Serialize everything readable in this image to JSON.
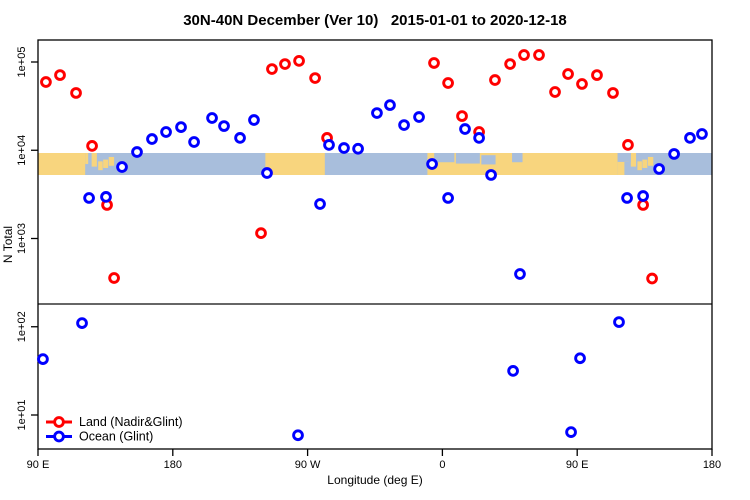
{
  "title": "30N-40N December (Ver 10)   2015-01-01 to 2020-12-18",
  "axes": {
    "x": {
      "label": "Longitude (deg E)",
      "ticks": [
        {
          "value": 90,
          "label": "90 E"
        },
        {
          "value": 180,
          "label": "180"
        },
        {
          "value": 270,
          "label": "90 W"
        },
        {
          "value": 360,
          "label": "0"
        },
        {
          "value": 450,
          "label": "90 E"
        },
        {
          "value": 540,
          "label": "180"
        }
      ]
    },
    "y": {
      "label": "N Total",
      "ticks": [
        {
          "value": 10,
          "label": "1e+01"
        },
        {
          "value": 100,
          "label": "1e+02"
        },
        {
          "value": 1000,
          "label": "1e+03"
        },
        {
          "value": 10000,
          "label": "1e+04"
        },
        {
          "value": 100000,
          "label": "1e+05"
        }
      ]
    }
  },
  "legend": [
    {
      "label": "Land (Nadir&Glint)",
      "color": "#ff0000"
    },
    {
      "label": "Ocean (Glint)",
      "color": "#0000ff"
    }
  ],
  "colors": {
    "land_series": "#ff0000",
    "ocean_series": "#0000ff",
    "map_land": "#f8d57e",
    "map_ocean": "#a8bedc",
    "frame": "#000000",
    "threshold_line": "#333333"
  },
  "map_band": {
    "description": "world map strip of the 30N-40N latitude band",
    "land_segments": [
      [
        90,
        121.5,
        0,
        1
      ],
      [
        121.5,
        123.5,
        0,
        0.5
      ],
      [
        125.8,
        129.3,
        0,
        0.62
      ],
      [
        130.2,
        133.2,
        0.38,
        0.78
      ],
      [
        133.5,
        136.8,
        0.3,
        0.68
      ],
      [
        137.2,
        140.8,
        0.18,
        0.58
      ],
      [
        241.8,
        281.5,
        0,
        1
      ],
      [
        350,
        477,
        0,
        1
      ],
      [
        477,
        481.5,
        0.4,
        1
      ],
      [
        481.5,
        484.5,
        0,
        0.4
      ],
      [
        485.8,
        489.3,
        0,
        0.62
      ],
      [
        490.2,
        493.2,
        0.38,
        0.78
      ],
      [
        493.5,
        496.8,
        0.3,
        0.68
      ],
      [
        497.2,
        500.8,
        0.18,
        0.58
      ]
    ],
    "ocean_patches": [
      [
        354.5,
        368,
        0,
        0.42
      ],
      [
        369,
        385,
        0,
        0.48
      ],
      [
        386,
        395.5,
        0.1,
        0.52
      ],
      [
        406.5,
        413.5,
        0,
        0.42
      ],
      [
        477,
        485.8,
        0,
        0.4
      ]
    ]
  },
  "chart_data": {
    "type": "scatter",
    "title": "30N-40N December (Ver 10)   2015-01-01 to 2020-12-18",
    "xlabel": "Longitude (deg E)",
    "ylabel": "N Total",
    "x_axis_note": "axis runs 90E eastward through 180, 90W, 0 to 180 again (domain 90..540, wrap at 360)",
    "x_domain": [
      90,
      540
    ],
    "y_scale": "log",
    "y_domain": [
      10,
      100000
    ],
    "grid": false,
    "legend_position": "bottom-left",
    "threshold_line_value": 181,
    "series": [
      {
        "name": "Land (Nadir&Glint)",
        "color": "#ff0000",
        "points": [
          [
            95.3,
            59300
          ],
          [
            104.7,
            71100
          ],
          [
            115.4,
            44600
          ],
          [
            126.1,
            11200
          ],
          [
            136.1,
            2400
          ],
          [
            140.8,
            357
          ],
          [
            238.9,
            1150
          ],
          [
            246.2,
            83200
          ],
          [
            254.9,
            94800
          ],
          [
            264.3,
            103000
          ],
          [
            275.0,
            65800
          ],
          [
            283.0,
            13800
          ],
          [
            354.4,
            97500
          ],
          [
            363.8,
            57800
          ],
          [
            373.1,
            24400
          ],
          [
            384.5,
            16100
          ],
          [
            395.1,
            62500
          ],
          [
            405.2,
            94800
          ],
          [
            414.5,
            120000
          ],
          [
            424.5,
            120000
          ],
          [
            435.2,
            45700
          ],
          [
            443.9,
            73100
          ],
          [
            453.2,
            56400
          ],
          [
            463.2,
            71100
          ],
          [
            473.9,
            44600
          ],
          [
            483.9,
            11500
          ],
          [
            494.0,
            2400
          ],
          [
            500.0,
            352
          ]
        ]
      },
      {
        "name": "Ocean (Glint)",
        "color": "#0000ff",
        "points": [
          [
            93.3,
            43
          ],
          [
            119.4,
            110
          ],
          [
            124.1,
            2880
          ],
          [
            135.4,
            2960
          ],
          [
            146.1,
            6460
          ],
          [
            156.1,
            9550
          ],
          [
            166.1,
            13400
          ],
          [
            175.5,
            16100
          ],
          [
            185.5,
            18300
          ],
          [
            194.2,
            12400
          ],
          [
            206.2,
            23200
          ],
          [
            214.2,
            18800
          ],
          [
            224.9,
            13800
          ],
          [
            234.2,
            22000
          ],
          [
            242.9,
            5520
          ],
          [
            263.6,
            5.9
          ],
          [
            278.3,
            2460
          ],
          [
            284.3,
            11500
          ],
          [
            294.3,
            10600
          ],
          [
            303.7,
            10400
          ],
          [
            316.3,
            26400
          ],
          [
            325.0,
            32500
          ],
          [
            334.4,
            19300
          ],
          [
            344.4,
            23800
          ],
          [
            353.1,
            6980
          ],
          [
            363.8,
            2880
          ],
          [
            375.1,
            17400
          ],
          [
            384.5,
            13800
          ],
          [
            392.5,
            5250
          ],
          [
            407.2,
            31.6
          ],
          [
            411.8,
            396
          ],
          [
            445.9,
            6.4
          ],
          [
            451.9,
            44
          ],
          [
            477.9,
            113
          ],
          [
            483.3,
            2880
          ],
          [
            494.0,
            3030
          ],
          [
            504.7,
            6140
          ],
          [
            514.7,
            9080
          ],
          [
            525.3,
            13800
          ],
          [
            533.3,
            15300
          ]
        ]
      }
    ]
  }
}
